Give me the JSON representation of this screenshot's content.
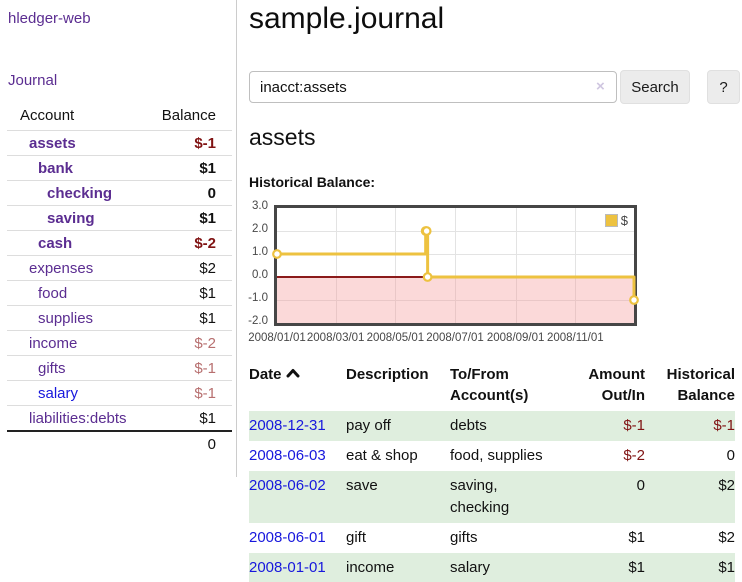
{
  "app_title": "hledger-web",
  "nav": {
    "journal": "Journal"
  },
  "sidebar_accounts": {
    "header_account": "Account",
    "header_balance": "Balance",
    "rows": [
      {
        "name": "assets",
        "balance": "$-1",
        "level": 1,
        "bold": true,
        "value_class": "neg",
        "name_style": "purple"
      },
      {
        "name": "bank",
        "balance": "$1",
        "level": 2,
        "bold": true,
        "value_class": "",
        "name_style": "purple"
      },
      {
        "name": "checking",
        "balance": "0",
        "level": 3,
        "bold": true,
        "value_class": "",
        "name_style": "purple"
      },
      {
        "name": "saving",
        "balance": "$1",
        "level": 3,
        "bold": true,
        "value_class": "",
        "name_style": "purple"
      },
      {
        "name": "cash",
        "balance": "$-2",
        "level": 2,
        "bold": true,
        "value_class": "neg",
        "name_style": "purple"
      },
      {
        "name": "expenses",
        "balance": "$2",
        "level": 1,
        "bold": false,
        "value_class": "",
        "name_style": "purple"
      },
      {
        "name": "food",
        "balance": "$1",
        "level": 2,
        "bold": false,
        "value_class": "",
        "name_style": "purple"
      },
      {
        "name": "supplies",
        "balance": "$1",
        "level": 2,
        "bold": false,
        "value_class": "",
        "name_style": "purple"
      },
      {
        "name": "income",
        "balance": "$-2",
        "level": 1,
        "bold": false,
        "value_class": "neg-muted",
        "name_style": "purple"
      },
      {
        "name": "gifts",
        "balance": "$-1",
        "level": 2,
        "bold": false,
        "value_class": "neg-muted",
        "name_style": "purple"
      },
      {
        "name": "salary",
        "balance": "$-1",
        "level": 2,
        "bold": false,
        "value_class": "neg-muted",
        "name_style": "blue"
      },
      {
        "name": "liabilities:debts",
        "balance": "$1",
        "level": 1,
        "bold": false,
        "value_class": "",
        "name_style": "purple"
      }
    ],
    "total": "0"
  },
  "main": {
    "title": "sample.journal",
    "search": {
      "value": "inacct:assets",
      "clear_icon": "×",
      "button_label": "Search",
      "help_label": "?"
    },
    "account_heading": "assets",
    "section_label": "Historical Balance:"
  },
  "register": {
    "headers": {
      "date": "Date",
      "description": "Description",
      "accounts": "To/From Account(s)",
      "amount": "Amount Out/In",
      "balance": "Historical Balance"
    },
    "rows": [
      {
        "date": "2008-12-31",
        "description": "pay off",
        "accounts": "debts",
        "amount": "$-1",
        "balance": "$-1",
        "amount_class": "neg",
        "balance_class": "neg"
      },
      {
        "date": "2008-06-03",
        "description": "eat & shop",
        "accounts": "food, supplies",
        "amount": "$-2",
        "balance": "0",
        "amount_class": "neg",
        "balance_class": ""
      },
      {
        "date": "2008-06-02",
        "description": "save",
        "accounts": "saving, checking",
        "amount": "0",
        "balance": "$2",
        "amount_class": "",
        "balance_class": ""
      },
      {
        "date": "2008-06-01",
        "description": "gift",
        "accounts": "gifts",
        "amount": "$1",
        "balance": "$2",
        "amount_class": "",
        "balance_class": ""
      },
      {
        "date": "2008-01-01",
        "description": "income",
        "accounts": "salary",
        "amount": "$1",
        "balance": "$1",
        "amount_class": "",
        "balance_class": ""
      }
    ]
  },
  "chart_data": {
    "type": "line",
    "title": "Historical Balance",
    "step": true,
    "grid": true,
    "legend": [
      {
        "label": "$",
        "color": "#edc240"
      }
    ],
    "legend_position": "top-right",
    "x_ticks": [
      "2008/01/01",
      "2008/03/01",
      "2008/05/01",
      "2008/07/01",
      "2008/09/01",
      "2008/11/01"
    ],
    "y_ticks": [
      "3.0",
      "2.0",
      "1.0",
      "0.0",
      "-1.0",
      "-2.0"
    ],
    "xlim": [
      "2008-01-01",
      "2008-12-31"
    ],
    "ylim": [
      -2,
      3
    ],
    "series": [
      {
        "name": "$",
        "color": "#edc240",
        "points": [
          [
            "2008-01-01",
            1
          ],
          [
            "2008-06-01",
            2
          ],
          [
            "2008-06-02",
            2
          ],
          [
            "2008-06-03",
            0
          ],
          [
            "2008-12-31",
            -1
          ]
        ]
      }
    ],
    "zero_line_color": "#8b1a1a",
    "negative_region_color": "rgba(244,156,156,0.38)"
  },
  "colors": {
    "link_purple": "#5b2d91",
    "link_blue": "#1717dd",
    "negative": "#801313",
    "negative_muted": "#b76f6f",
    "row_green": "#dfeede",
    "series_gold": "#edc240"
  }
}
